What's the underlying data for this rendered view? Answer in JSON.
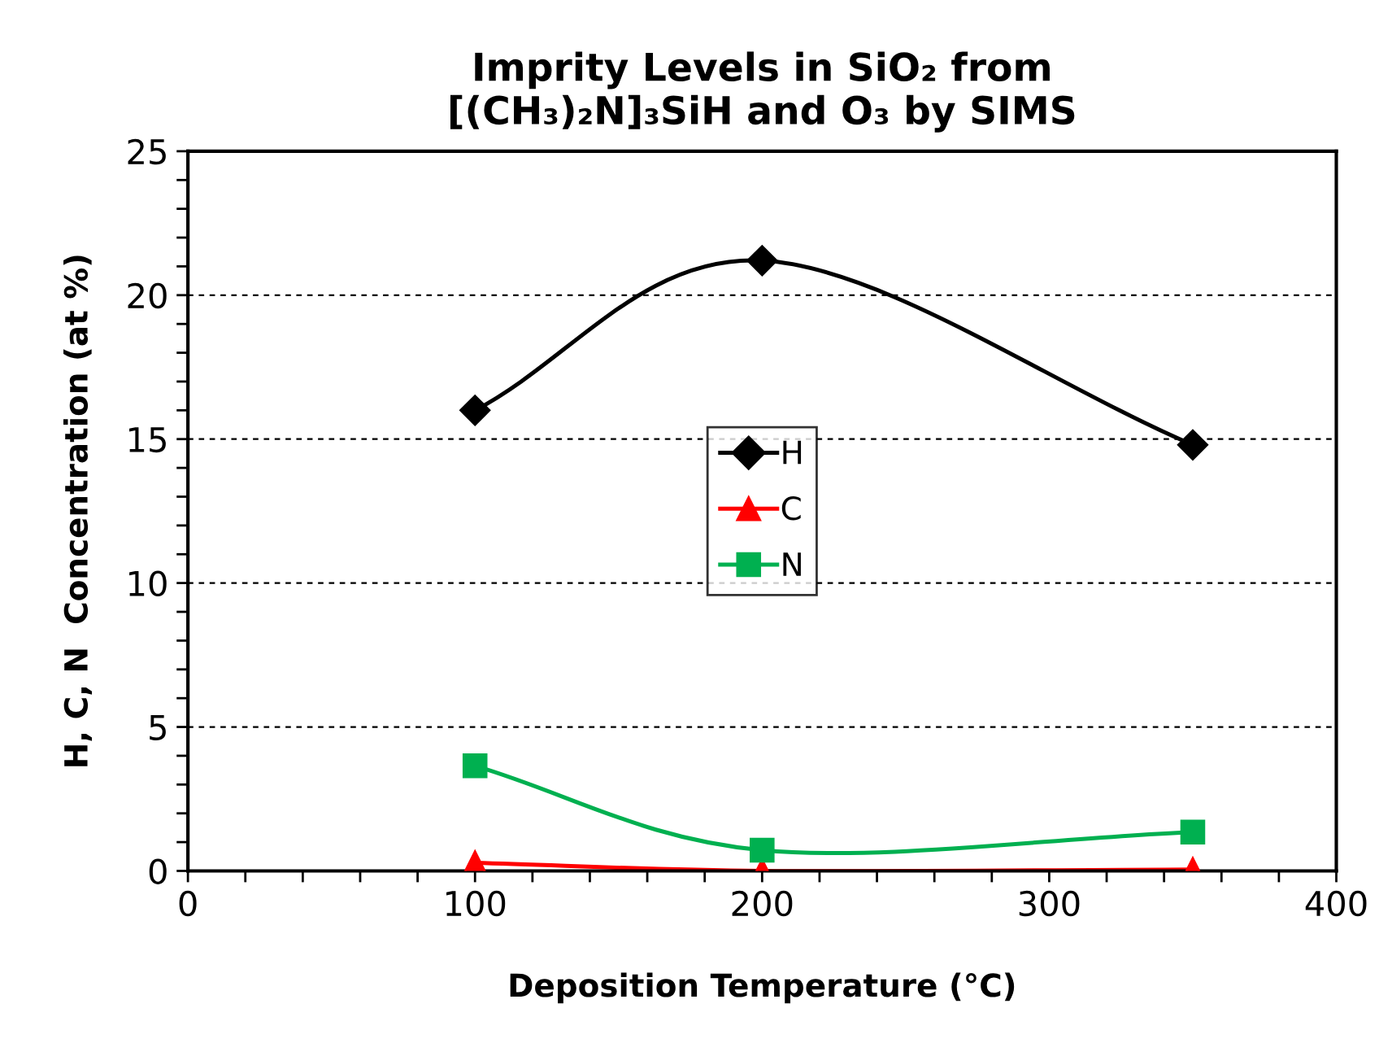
{
  "chart_data": {
    "type": "line",
    "title": "Imprity Levels in SiO₂ from\n[(CH₃)₂N]₃SiH and O₃ by SIMS",
    "xlabel": "Deposition Temperature (°C)",
    "ylabel": "H, C, N  Concentration (at %)",
    "x": [
      100,
      200,
      350
    ],
    "series": [
      {
        "name": "H",
        "color": "#000000",
        "marker": "diamond",
        "values": [
          16.0,
          21.2,
          14.8
        ]
      },
      {
        "name": "C",
        "color": "#ff0000",
        "marker": "triangle",
        "values": [
          0.28,
          0.0,
          0.05
        ]
      },
      {
        "name": "N",
        "color": "#00b050",
        "marker": "square",
        "values": [
          3.65,
          0.72,
          1.35
        ]
      }
    ],
    "xlim": [
      0,
      400
    ],
    "xticks": [
      0,
      {
        "value": 20,
        "label": null
      },
      {
        "value": 40,
        "label": null
      },
      {
        "value": 60,
        "label": null
      },
      {
        "value": 80,
        "label": null
      },
      100,
      {
        "value": 120,
        "label": null
      },
      {
        "value": 140,
        "label": null
      },
      {
        "value": 160,
        "label": null
      },
      {
        "value": 180,
        "label": null
      },
      200,
      {
        "value": 220,
        "label": null
      },
      {
        "value": 240,
        "label": null
      },
      {
        "value": 260,
        "label": null
      },
      {
        "value": 280,
        "label": null
      },
      300,
      {
        "value": 320,
        "label": null
      },
      {
        "value": 340,
        "label": null
      },
      {
        "value": 360,
        "label": null
      },
      {
        "value": 380,
        "label": null
      },
      400
    ],
    "ylim": [
      0,
      25
    ],
    "yticks": [
      0,
      {
        "value": 1,
        "label": null
      },
      {
        "value": 2,
        "label": null
      },
      {
        "value": 3,
        "label": null
      },
      {
        "value": 4,
        "label": null
      },
      5,
      {
        "value": 6,
        "label": null
      },
      {
        "value": 7,
        "label": null
      },
      {
        "value": 8,
        "label": null
      },
      {
        "value": 9,
        "label": null
      },
      10,
      {
        "value": 11,
        "label": null
      },
      {
        "value": 12,
        "label": null
      },
      {
        "value": 13,
        "label": null
      },
      {
        "value": 14,
        "label": null
      },
      15,
      {
        "value": 16,
        "label": null
      },
      {
        "value": 17,
        "label": null
      },
      {
        "value": 18,
        "label": null
      },
      {
        "value": 19,
        "label": null
      },
      20,
      {
        "value": 21,
        "label": null
      },
      {
        "value": 22,
        "label": null
      },
      {
        "value": 23,
        "label": null
      },
      {
        "value": 24,
        "label": null
      },
      25
    ],
    "grid": "y",
    "legend": "center",
    "line_style": "solid"
  }
}
